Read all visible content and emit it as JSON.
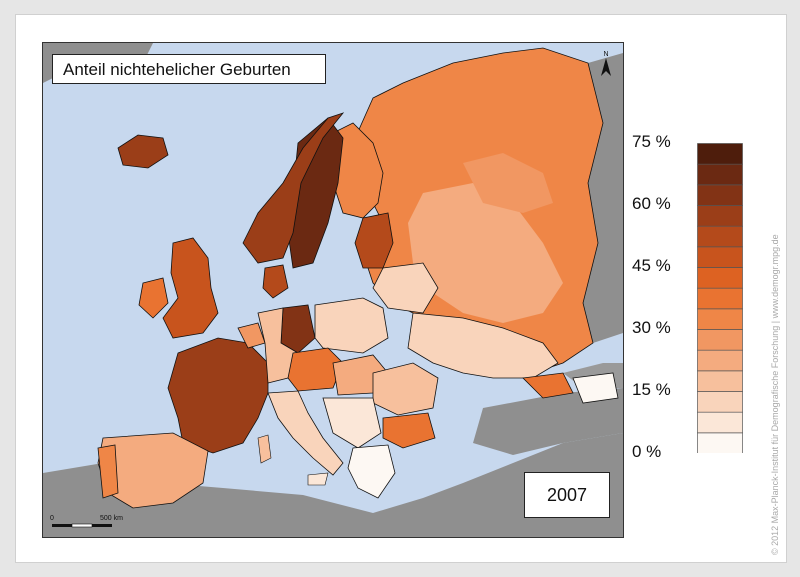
{
  "title": "Anteil nichtehelicher Geburten",
  "year": "2007",
  "north_label": "N",
  "scale": {
    "start": "0",
    "end": "500 km"
  },
  "legend": {
    "labels": [
      "75 %",
      "60 %",
      "45 %",
      "30 %",
      "15 %",
      "0 %"
    ],
    "max": 75,
    "min": 0,
    "step": 5,
    "colors": [
      "#fdf8f3",
      "#fbe7d8",
      "#f9d4bb",
      "#f7c09d",
      "#f4ab7f",
      "#f19762",
      "#ef8647",
      "#e97331",
      "#dd6222",
      "#c8541d",
      "#b44a1b",
      "#9b3e18",
      "#823315",
      "#6b2912",
      "#4e1d0c"
    ]
  },
  "colors": {
    "sea": "#c7d8ee",
    "non_data_land": "#8f8f8f",
    "border": "#111111"
  },
  "copyright": "© 2012 Max-Planck-Institut für Demografische Forschung | www.demogr.mpg.de"
}
